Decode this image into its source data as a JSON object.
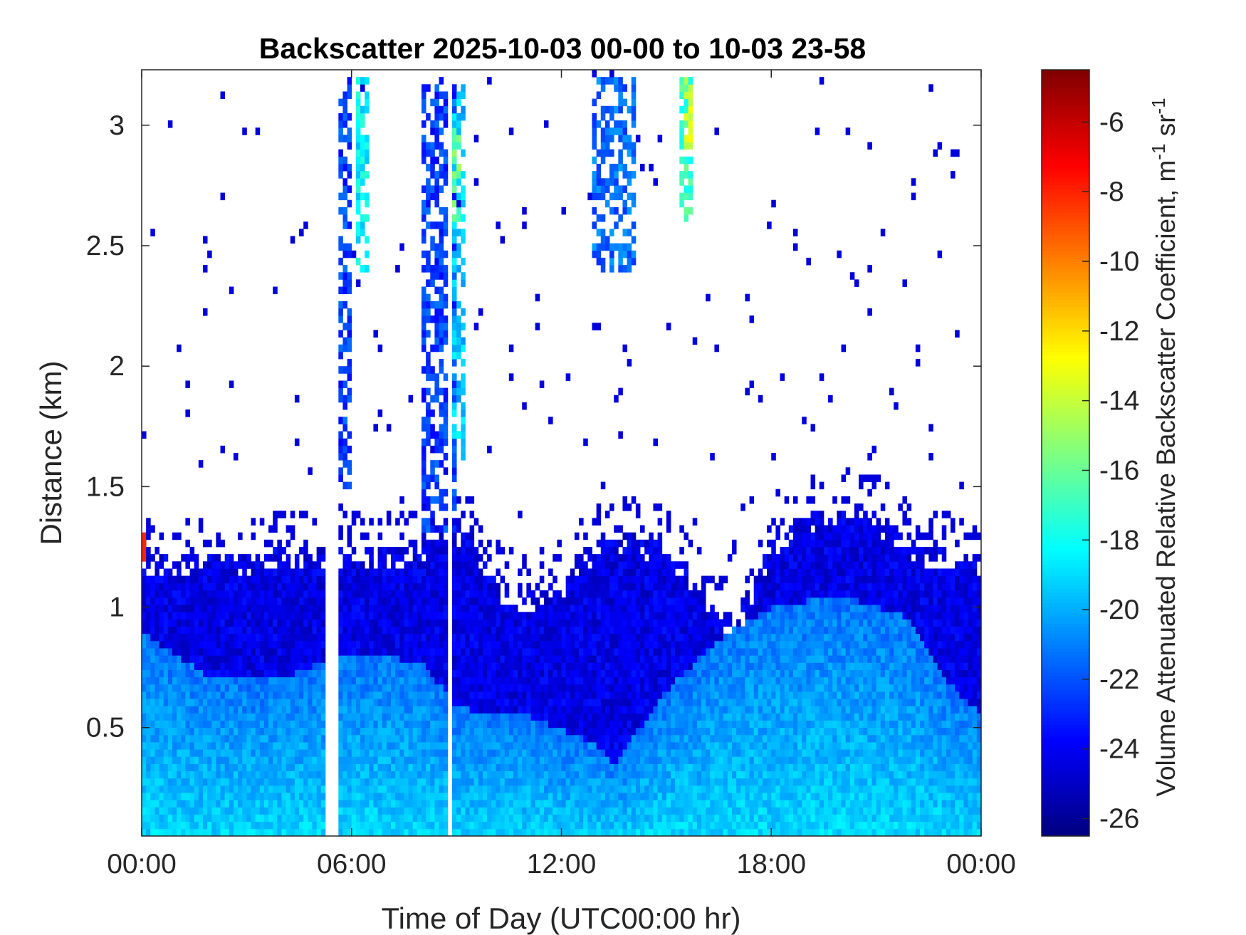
{
  "chart_data": {
    "type": "heatmap",
    "title": "Backscatter 2025-10-03 00-00 to 10-03 23-58",
    "xlabel": "Time of Day (UTC00:00 hr)",
    "ylabel": "Distance (km)",
    "colorbar_label_parts": [
      "Volume Attenuated Relative Backscatter Coefficient, m",
      "-1",
      " sr",
      "-1"
    ],
    "xlim_hours": [
      0,
      24
    ],
    "ylim_km": [
      0.05,
      3.23
    ],
    "clim": [
      -26.5,
      -4.5
    ],
    "x_ticks": [
      {
        "v": 0,
        "label": "00:00"
      },
      {
        "v": 6,
        "label": "06:00"
      },
      {
        "v": 12,
        "label": "12:00"
      },
      {
        "v": 18,
        "label": "18:00"
      },
      {
        "v": 24,
        "label": "00:00"
      }
    ],
    "y_ticks": [
      {
        "v": 0.5,
        "label": "0.5"
      },
      {
        "v": 1,
        "label": "1"
      },
      {
        "v": 1.5,
        "label": "1.5"
      },
      {
        "v": 2,
        "label": "2"
      },
      {
        "v": 2.5,
        "label": "2.5"
      },
      {
        "v": 3,
        "label": "3"
      }
    ],
    "colorbar_ticks": [
      {
        "v": -6,
        "label": "-6"
      },
      {
        "v": -8,
        "label": "-8"
      },
      {
        "v": -10,
        "label": "-10"
      },
      {
        "v": -12,
        "label": "-12"
      },
      {
        "v": -14,
        "label": "-14"
      },
      {
        "v": -16,
        "label": "-16"
      },
      {
        "v": -18,
        "label": "-18"
      },
      {
        "v": -20,
        "label": "-20"
      },
      {
        "v": -22,
        "label": "-22"
      },
      {
        "v": -24,
        "label": "-24"
      },
      {
        "v": -26,
        "label": "-26"
      }
    ],
    "colormap": "jet",
    "top_of_layer_km": [
      [
        0,
        1.22
      ],
      [
        1,
        1.2
      ],
      [
        2,
        1.22
      ],
      [
        3,
        1.22
      ],
      [
        4,
        1.24
      ],
      [
        5,
        1.25
      ],
      [
        6,
        1.25
      ],
      [
        7,
        1.25
      ],
      [
        8,
        1.26
      ],
      [
        9,
        1.35
      ],
      [
        9.5,
        1.3
      ],
      [
        10,
        1.12
      ],
      [
        11,
        1.06
      ],
      [
        12,
        1.12
      ],
      [
        13,
        1.28
      ],
      [
        14,
        1.3
      ],
      [
        15,
        1.26
      ],
      [
        16,
        1.08
      ],
      [
        16.5,
        0.98
      ],
      [
        17,
        0.95
      ],
      [
        17.5,
        1.12
      ],
      [
        18,
        1.28
      ],
      [
        19,
        1.38
      ],
      [
        20,
        1.42
      ],
      [
        21,
        1.4
      ],
      [
        22,
        1.26
      ],
      [
        23,
        1.24
      ],
      [
        24,
        1.22
      ]
    ],
    "dense_layer_top_km": [
      [
        0,
        0.9
      ],
      [
        2,
        0.7
      ],
      [
        4,
        0.7
      ],
      [
        5.5,
        0.8
      ],
      [
        8,
        0.78
      ],
      [
        9,
        0.58
      ],
      [
        11,
        0.55
      ],
      [
        13,
        0.43
      ],
      [
        13.5,
        0.35
      ],
      [
        14,
        0.45
      ],
      [
        15,
        0.65
      ],
      [
        16,
        0.8
      ],
      [
        17,
        0.92
      ],
      [
        18,
        1.0
      ],
      [
        20,
        1.05
      ],
      [
        22,
        0.95
      ],
      [
        23,
        0.7
      ],
      [
        24,
        0.55
      ]
    ],
    "cloud_features": [
      {
        "t": [
          5.3,
          5.6
        ],
        "h": [
          1.4,
          2.3
        ],
        "level": -20.5
      },
      {
        "t": [
          5.5,
          6.0
        ],
        "h": [
          1.5,
          3.2
        ],
        "level": -22.5
      },
      {
        "t": [
          6.1,
          6.5
        ],
        "h": [
          2.4,
          3.2
        ],
        "level": -18.5
      },
      {
        "t": [
          8.0,
          9.0
        ],
        "h": [
          1.3,
          3.2
        ],
        "level": -22.5
      },
      {
        "t": [
          8.7,
          9.3
        ],
        "h": [
          1.6,
          3.2
        ],
        "level": -19.5
      },
      {
        "t": [
          8.8,
          9.1
        ],
        "h": [
          2.6,
          3.0
        ],
        "level": -16.0
      },
      {
        "t": [
          12.9,
          14.1
        ],
        "h": [
          2.4,
          3.2
        ],
        "level": -21.5
      },
      {
        "t": [
          15.4,
          15.8
        ],
        "h": [
          2.6,
          3.2
        ],
        "level": -17.0
      },
      {
        "t": [
          15.55,
          15.72
        ],
        "h": [
          2.9,
          3.2
        ],
        "level": -13.5
      }
    ],
    "gaps_hours": [
      5.35,
      5.5,
      8.85
    ],
    "highlight": {
      "t": [
        0,
        0.15
      ],
      "h": [
        1.18,
        1.32
      ],
      "level": -8
    }
  }
}
